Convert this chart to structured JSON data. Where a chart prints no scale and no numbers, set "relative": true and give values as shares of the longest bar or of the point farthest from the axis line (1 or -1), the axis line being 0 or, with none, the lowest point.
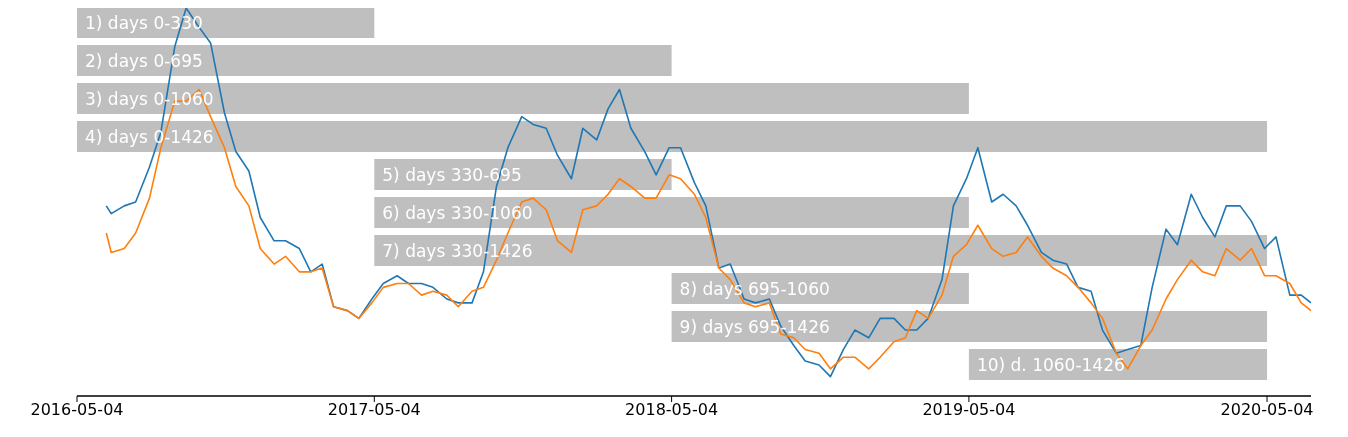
{
  "chart_data": {
    "type": "line",
    "relative": true,
    "legend": false,
    "grid": false,
    "marker": "none",
    "line_style": "solid",
    "x": [
      "2016-06-09",
      "2016-06-15",
      "2016-07-01",
      "2016-07-15",
      "2016-08-01",
      "2016-08-15",
      "2016-09-01",
      "2016-09-15",
      "2016-10-01",
      "2016-10-15",
      "2016-11-01",
      "2016-11-15",
      "2016-12-01",
      "2016-12-15",
      "2017-01-01",
      "2017-01-15",
      "2017-02-01",
      "2017-02-15",
      "2017-03-01",
      "2017-03-15",
      "2017-04-01",
      "2017-04-15",
      "2017-05-01",
      "2017-05-15",
      "2017-06-01",
      "2017-06-15",
      "2017-07-01",
      "2017-07-15",
      "2017-08-01",
      "2017-08-15",
      "2017-09-01",
      "2017-09-15",
      "2017-10-01",
      "2017-10-15",
      "2017-11-01",
      "2017-11-15",
      "2017-12-01",
      "2017-12-15",
      "2018-01-01",
      "2018-01-15",
      "2018-02-01",
      "2018-02-15",
      "2018-03-01",
      "2018-03-15",
      "2018-04-01",
      "2018-04-15",
      "2018-05-01",
      "2018-05-15",
      "2018-06-01",
      "2018-06-15",
      "2018-07-01",
      "2018-07-15",
      "2018-08-01",
      "2018-08-15",
      "2018-09-01",
      "2018-09-15",
      "2018-10-01",
      "2018-10-15",
      "2018-11-01",
      "2018-11-15",
      "2018-12-01",
      "2018-12-15",
      "2019-01-01",
      "2019-01-15",
      "2019-02-01",
      "2019-02-15",
      "2019-03-01",
      "2019-03-15",
      "2019-04-01",
      "2019-04-15",
      "2019-05-01",
      "2019-05-15",
      "2019-06-01",
      "2019-06-15",
      "2019-07-01",
      "2019-07-15",
      "2019-08-01",
      "2019-08-15",
      "2019-09-01",
      "2019-09-15",
      "2019-10-01",
      "2019-10-15",
      "2019-11-01",
      "2019-11-15",
      "2019-12-01",
      "2019-12-15",
      "2020-01-01",
      "2020-01-15",
      "2020-02-01",
      "2020-02-15",
      "2020-03-01",
      "2020-03-15",
      "2020-04-01",
      "2020-04-15",
      "2020-05-01",
      "2020-05-15",
      "2020-06-01",
      "2020-06-15",
      "2020-06-27"
    ],
    "xlim": [
      "2016-05-04",
      "2020-06-27"
    ],
    "xticks": [
      "2016-05-04",
      "2017-05-04",
      "2018-05-04",
      "2019-05-04",
      "2020-05-04"
    ],
    "tick_labels": "x",
    "series": [
      {
        "color": "#1f77b4",
        "values": [
          0.49,
          0.47,
          0.49,
          0.5,
          0.59,
          0.68,
          0.9,
          1.0,
          0.95,
          0.91,
          0.73,
          0.63,
          0.58,
          0.46,
          0.4,
          0.4,
          0.38,
          0.32,
          0.34,
          0.23,
          0.22,
          0.2,
          0.25,
          0.29,
          0.31,
          0.29,
          0.29,
          0.28,
          0.25,
          0.24,
          0.24,
          0.32,
          0.54,
          0.64,
          0.72,
          0.7,
          0.69,
          0.62,
          0.56,
          0.69,
          0.66,
          0.74,
          0.79,
          0.69,
          0.63,
          0.57,
          0.64,
          0.64,
          0.55,
          0.49,
          0.33,
          0.34,
          0.25,
          0.24,
          0.25,
          0.18,
          0.13,
          0.09,
          0.08,
          0.05,
          0.12,
          0.17,
          0.15,
          0.2,
          0.2,
          0.17,
          0.17,
          0.2,
          0.3,
          0.49,
          0.56,
          0.64,
          0.5,
          0.52,
          0.49,
          0.44,
          0.37,
          0.35,
          0.34,
          0.28,
          0.27,
          0.17,
          0.11,
          0.12,
          0.13,
          0.28,
          0.43,
          0.39,
          0.52,
          0.46,
          0.41,
          0.49,
          0.49,
          0.45,
          0.38,
          0.41,
          0.26,
          0.26,
          0.24
        ]
      },
      {
        "color": "#ff7f0e",
        "values": [
          0.42,
          0.37,
          0.38,
          0.42,
          0.51,
          0.64,
          0.76,
          0.76,
          0.79,
          0.72,
          0.64,
          0.54,
          0.49,
          0.38,
          0.34,
          0.36,
          0.32,
          0.32,
          0.33,
          0.23,
          0.22,
          0.2,
          0.24,
          0.28,
          0.29,
          0.29,
          0.26,
          0.27,
          0.26,
          0.23,
          0.27,
          0.28,
          0.35,
          0.42,
          0.5,
          0.51,
          0.48,
          0.4,
          0.37,
          0.48,
          0.49,
          0.52,
          0.56,
          0.54,
          0.51,
          0.51,
          0.57,
          0.56,
          0.52,
          0.46,
          0.33,
          0.3,
          0.24,
          0.23,
          0.24,
          0.16,
          0.15,
          0.12,
          0.11,
          0.07,
          0.1,
          0.1,
          0.07,
          0.1,
          0.14,
          0.15,
          0.22,
          0.2,
          0.26,
          0.36,
          0.39,
          0.44,
          0.38,
          0.36,
          0.37,
          0.41,
          0.36,
          0.33,
          0.31,
          0.28,
          0.24,
          0.2,
          0.11,
          0.07,
          0.13,
          0.17,
          0.25,
          0.3,
          0.35,
          0.32,
          0.31,
          0.38,
          0.35,
          0.38,
          0.31,
          0.31,
          0.29,
          0.24,
          0.22
        ]
      }
    ],
    "bands": [
      {
        "axis": "x",
        "from": "2016-05-04",
        "to": "2017-05-04",
        "label": "1) days 0-330"
      },
      {
        "axis": "x",
        "from": "2016-05-04",
        "to": "2018-05-04",
        "label": "2) days 0-695"
      },
      {
        "axis": "x",
        "from": "2016-05-04",
        "to": "2019-05-04",
        "label": "3) days 0-1060"
      },
      {
        "axis": "x",
        "from": "2016-05-04",
        "to": "2020-05-04",
        "label": "4) days 0-1426"
      },
      {
        "axis": "x",
        "from": "2017-05-04",
        "to": "2018-05-04",
        "label": "5) days 330-695"
      },
      {
        "axis": "x",
        "from": "2017-05-04",
        "to": "2019-05-04",
        "label": "6) days 330-1060"
      },
      {
        "axis": "x",
        "from": "2017-05-04",
        "to": "2020-05-04",
        "label": "7) days 330-1426"
      },
      {
        "axis": "x",
        "from": "2018-05-04",
        "to": "2019-05-04",
        "label": "8) days 695-1060"
      },
      {
        "axis": "x",
        "from": "2018-05-04",
        "to": "2020-05-04",
        "label": "9) days 695-1426"
      },
      {
        "axis": "x",
        "from": "2019-05-04",
        "to": "2020-05-04",
        "label": "10) d. 1060-1426"
      }
    ]
  }
}
